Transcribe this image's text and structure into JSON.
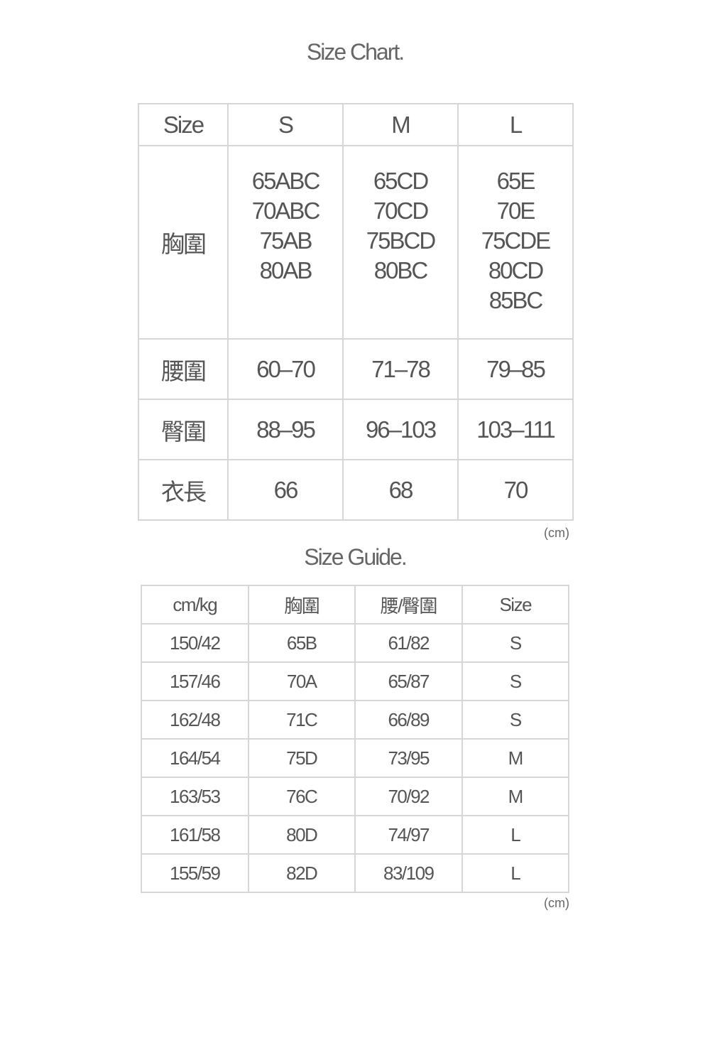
{
  "size_chart": {
    "title": "Size Chart.",
    "header": [
      "Size",
      "S",
      "M",
      "L"
    ],
    "bust": {
      "label": "胸圍",
      "values": [
        [
          "65ABC",
          "70ABC",
          "75AB",
          "80AB"
        ],
        [
          "65CD",
          "70CD",
          "75BCD",
          "80BC"
        ],
        [
          "65E",
          "70E",
          "75CDE",
          "80CD",
          "85BC"
        ]
      ]
    },
    "rows": [
      {
        "label": "腰圍",
        "values": [
          "60–70",
          "71–78",
          "79–85"
        ]
      },
      {
        "label": "臀圍",
        "values": [
          "88–95",
          "96–103",
          "103–111"
        ]
      },
      {
        "label": "衣長",
        "values": [
          "66",
          "68",
          "70"
        ]
      }
    ],
    "unit": "(cm)"
  },
  "size_guide": {
    "title": "Size Guide.",
    "header": [
      "cm/kg",
      "胸圍",
      "腰/臀圍",
      "Size"
    ],
    "rows": [
      [
        "150/42",
        "65B",
        "61/82",
        "S"
      ],
      [
        "157/46",
        "70A",
        "65/87",
        "S"
      ],
      [
        "162/48",
        "71C",
        "66/89",
        "S"
      ],
      [
        "164/54",
        "75D",
        "73/95",
        "M"
      ],
      [
        "163/53",
        "76C",
        "70/92",
        "M"
      ],
      [
        "161/58",
        "80D",
        "74/97",
        "L"
      ],
      [
        "155/59",
        "82D",
        "83/109",
        "L"
      ]
    ],
    "unit": "(cm)"
  }
}
